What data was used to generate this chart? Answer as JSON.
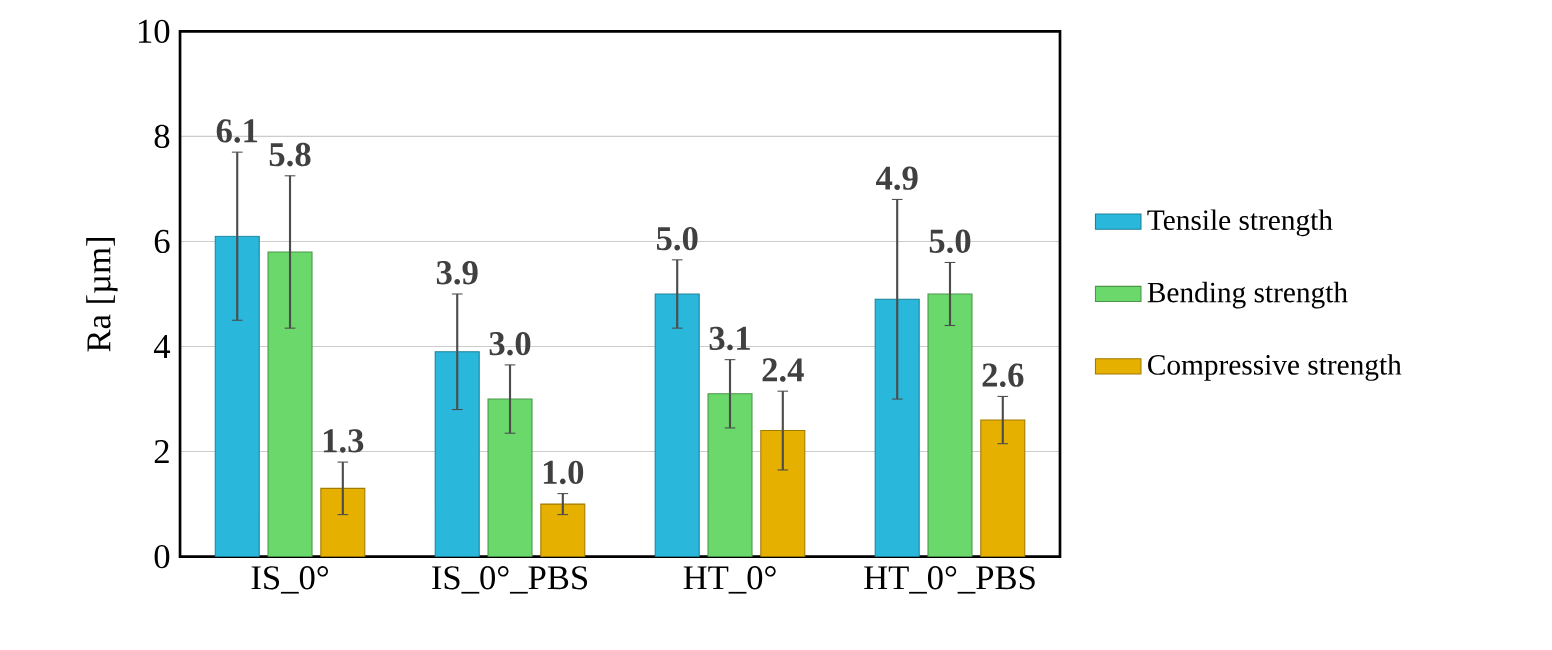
{
  "chart_data": {
    "type": "bar",
    "ylabel": "Ra [µm]",
    "categories": [
      "IS_0°",
      "IS_0°_PBS",
      "HT_0°",
      "HT_0°_PBS"
    ],
    "series": [
      {
        "name": "Tensile strength",
        "color": "#29b8dc",
        "values": [
          6.1,
          3.9,
          5.0,
          4.9
        ],
        "errors": [
          1.6,
          1.1,
          0.65,
          1.9
        ],
        "value_labels": [
          "6.1",
          "3.9",
          "5.0",
          "4.9"
        ]
      },
      {
        "name": "Bending strength",
        "color": "#6ad86a",
        "values": [
          5.8,
          3.0,
          3.1,
          5.0
        ],
        "errors": [
          1.45,
          0.65,
          0.65,
          0.6
        ],
        "value_labels": [
          "5.8",
          "3.0",
          "3.1",
          "5.0"
        ]
      },
      {
        "name": "Compressive strength",
        "color": "#e6b000",
        "values": [
          1.3,
          1.0,
          2.4,
          2.6
        ],
        "errors": [
          0.5,
          0.2,
          0.75,
          0.45
        ],
        "value_labels": [
          "1.3",
          "1.0",
          "2.4",
          "2.6"
        ]
      }
    ],
    "ylim": [
      0,
      10
    ],
    "yticks": [
      0,
      2,
      4,
      6,
      8,
      10
    ],
    "grid": "y",
    "legend": "right"
  }
}
